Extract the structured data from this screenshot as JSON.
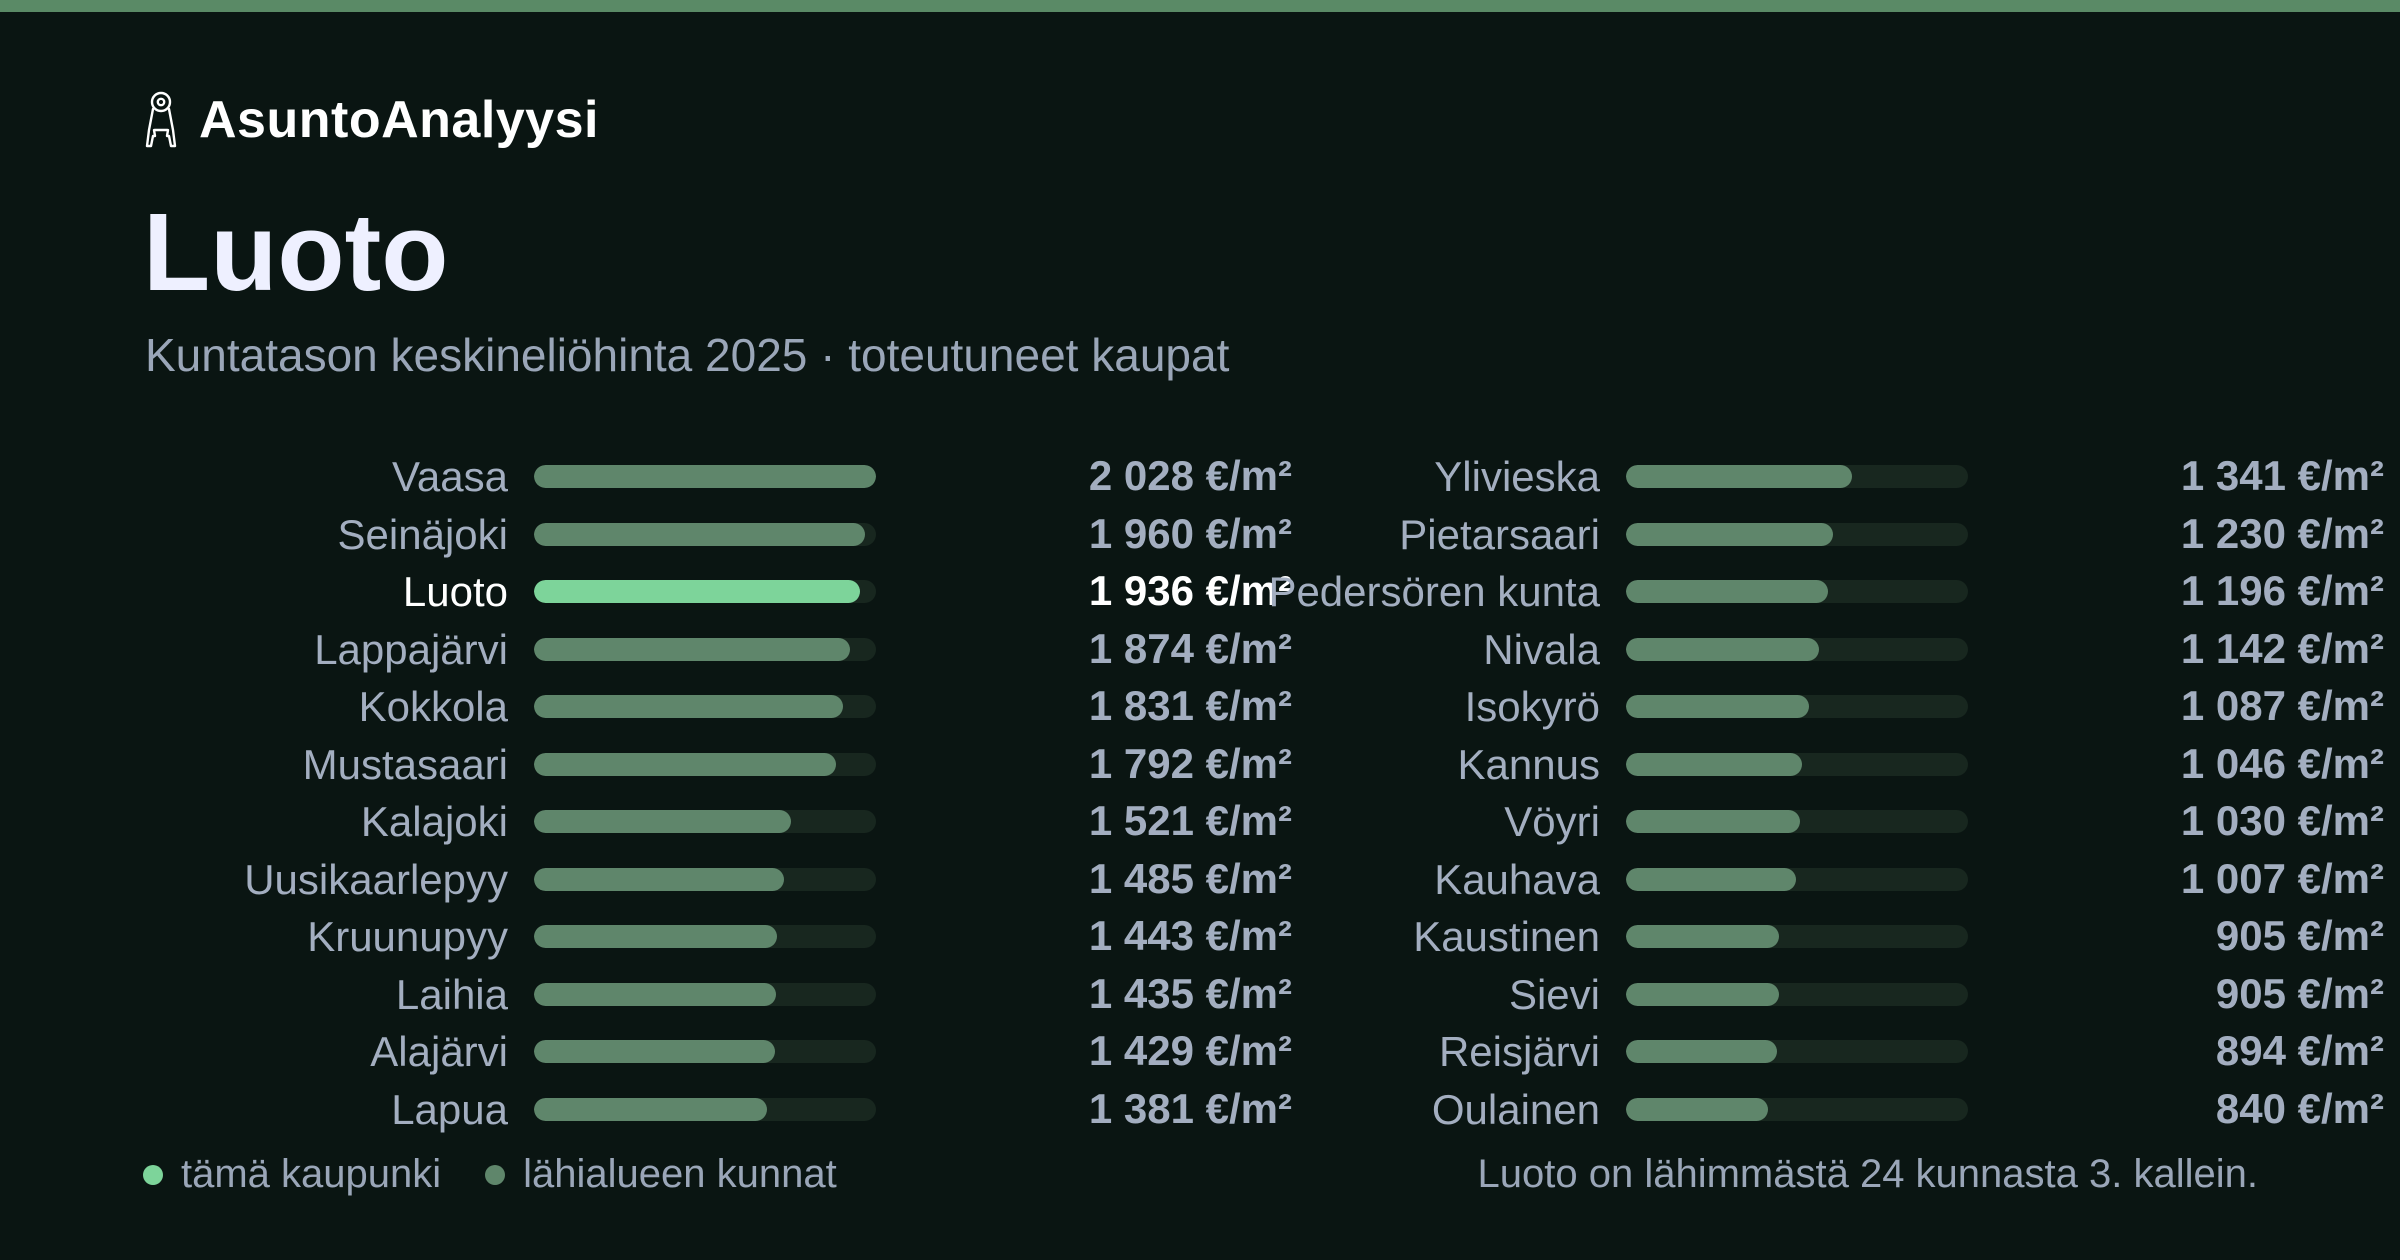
{
  "brand": {
    "name": "AsuntoAnalyysi",
    "icon": "keys-icon"
  },
  "header": {
    "title": "Luoto",
    "subtitle": "Kuntatason keskineliöhinta 2025 · toteutuneet kaupat"
  },
  "colors": {
    "background": "#0a1512",
    "accent_bar": "#5a8a66",
    "highlight": "#7dd49a",
    "neighbor": "#5f866b",
    "track": "#18271f",
    "text_muted": "#a3aec0",
    "text_bright": "#ffffff"
  },
  "chart_data": {
    "type": "bar",
    "orientation": "horizontal",
    "unit": "€/m²",
    "highlight": "Luoto",
    "xlim": [
      0,
      2028
    ],
    "categories": [
      "Vaasa",
      "Seinäjoki",
      "Luoto",
      "Lappajärvi",
      "Kokkola",
      "Mustasaari",
      "Kalajoki",
      "Uusikaarlepyy",
      "Kruunupyy",
      "Laihia",
      "Alajärvi",
      "Lapua",
      "Ylivieska",
      "Pietarsaari",
      "Pedersören kunta",
      "Nivala",
      "Isokyrö",
      "Kannus",
      "Vöyri",
      "Kauhava",
      "Kaustinen",
      "Sievi",
      "Reisjärvi",
      "Oulainen"
    ],
    "values": [
      2028,
      1960,
      1936,
      1874,
      1831,
      1792,
      1521,
      1485,
      1443,
      1435,
      1429,
      1381,
      1341,
      1230,
      1196,
      1142,
      1087,
      1046,
      1030,
      1007,
      905,
      905,
      894,
      840
    ],
    "value_labels": [
      "2 028 €/m²",
      "1 960 €/m²",
      "1 936 €/m²",
      "1 874 €/m²",
      "1 831 €/m²",
      "1 792 €/m²",
      "1 521 €/m²",
      "1 485 €/m²",
      "1 443 €/m²",
      "1 435 €/m²",
      "1 429 €/m²",
      "1 381 €/m²",
      "1 341 €/m²",
      "1 230 €/m²",
      "1 196 €/m²",
      "1 142 €/m²",
      "1 087 €/m²",
      "1 046 €/m²",
      "1 030 €/m²",
      "1 007 €/m²",
      "905 €/m²",
      "905 €/m²",
      "894 €/m²",
      "840 €/m²"
    ],
    "legend": [
      {
        "label": "tämä kaupunki",
        "color": "#7dd49a"
      },
      {
        "label": "lähialueen kunnat",
        "color": "#5f866b"
      }
    ],
    "legend_position": "bottom-left",
    "grid": false
  },
  "footnote": "Luoto on lähimmästä 24 kunnasta 3. kallein."
}
